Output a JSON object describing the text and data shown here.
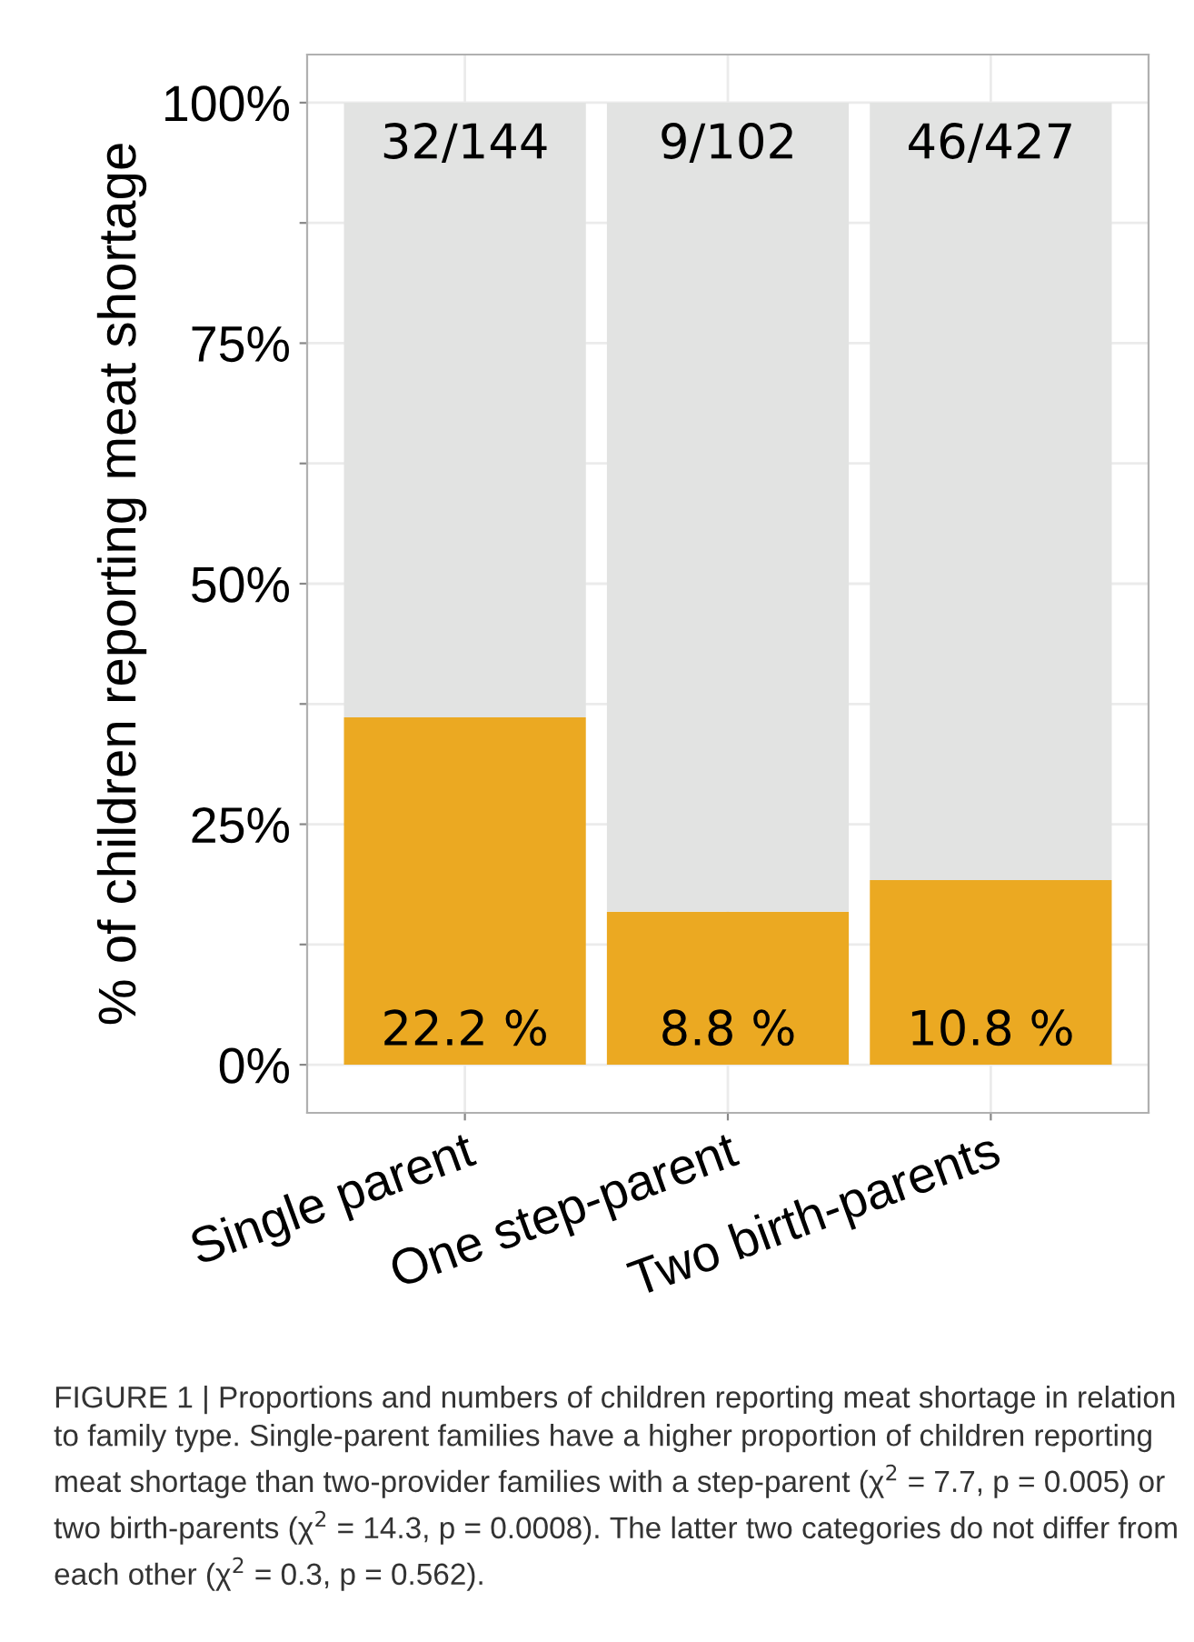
{
  "chart_data": {
    "type": "bar",
    "stacked": true,
    "ylabel": "% of children reporting meat shortage",
    "categories": [
      "Single parent",
      "One step-parent",
      "Two birth-parents"
    ],
    "series": [
      {
        "color": "#eba922",
        "values": [
          36.1,
          15.9,
          19.2
        ]
      },
      {
        "color": "#e2e3e2",
        "values": [
          63.9,
          84.1,
          80.8
        ]
      }
    ],
    "ylim": [
      -5,
      105
    ],
    "yticks": [
      {
        "value": 0,
        "label": "0%"
      },
      {
        "value": 12.5,
        "label": null
      },
      {
        "value": 25,
        "label": "25%"
      },
      {
        "value": 37.5,
        "label": null
      },
      {
        "value": 50,
        "label": "50%"
      },
      {
        "value": 62.5,
        "label": null
      },
      {
        "value": 75,
        "label": "75%"
      },
      {
        "value": 87.5,
        "label": null
      },
      {
        "value": 100,
        "label": "100%"
      }
    ],
    "grid": true,
    "annotations": [
      "22.2 %",
      "8.8 %",
      "10.8 %",
      "32/144",
      "9/102",
      "46/427",
      "FIGURE 1 | Proportions and numbers of children reporting meat shortage in relation to family type. Single-parent families have a higher proportion of children reporting meat shortage than two-provider families with a step-parent (χ$^{2}$ = 7.7, p = 0.005) or two birth-parents (χ$^{2}$ = 14.3, p = 0.0008). The latter two categories do not differ from each other (χ$^{2}$ = 0.3, p = 0.562)."
    ]
  }
}
